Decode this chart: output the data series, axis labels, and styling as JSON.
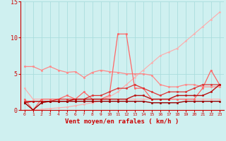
{
  "x": [
    0,
    1,
    2,
    3,
    4,
    5,
    6,
    7,
    8,
    9,
    10,
    11,
    12,
    13,
    14,
    15,
    16,
    17,
    18,
    19,
    20,
    21,
    22,
    23
  ],
  "background_color": "#cff0f0",
  "grid_color": "#aadddd",
  "xlabel": "Vent moyen/en rafales ( km/h )",
  "ylim": [
    0,
    15
  ],
  "xlim": [
    -0.5,
    23.5
  ],
  "yticks": [
    0,
    5,
    10,
    15
  ],
  "series": [
    {
      "color": "#ffaaaa",
      "linewidth": 0.8,
      "marker": "o",
      "markersize": 1.5,
      "values": [
        0,
        0.0,
        0.1,
        0.2,
        0.3,
        0.4,
        0.6,
        0.8,
        1.0,
        1.3,
        1.8,
        2.5,
        3.5,
        4.5,
        5.5,
        6.5,
        7.5,
        8.0,
        8.5,
        9.5,
        10.5,
        11.5,
        12.5,
        13.5
      ]
    },
    {
      "color": "#ffaaaa",
      "linewidth": 0.8,
      "marker": "o",
      "markersize": 1.5,
      "values": [
        3.0,
        1.5,
        1.5,
        1.5,
        1.5,
        1.5,
        1.5,
        1.5,
        1.5,
        1.5,
        1.5,
        1.5,
        1.5,
        1.5,
        1.5,
        1.5,
        1.5,
        1.5,
        1.5,
        1.5,
        1.5,
        1.5,
        1.5,
        1.5
      ]
    },
    {
      "color": "#ff8888",
      "linewidth": 0.9,
      "marker": "o",
      "markersize": 1.8,
      "values": [
        6.0,
        6.0,
        5.5,
        6.0,
        5.5,
        5.2,
        5.3,
        4.5,
        5.2,
        5.5,
        5.3,
        5.2,
        5.0,
        5.0,
        5.0,
        4.8,
        3.5,
        3.2,
        3.2,
        3.5,
        3.5,
        3.2,
        3.2,
        3.2
      ]
    },
    {
      "color": "#ff6666",
      "linewidth": 0.9,
      "marker": "o",
      "markersize": 1.8,
      "values": [
        1.5,
        0.0,
        1.5,
        1.5,
        1.5,
        2.0,
        1.5,
        2.5,
        1.5,
        1.5,
        2.0,
        10.5,
        10.5,
        3.0,
        3.0,
        1.5,
        1.5,
        1.5,
        1.5,
        1.5,
        1.5,
        3.0,
        5.5,
        3.5
      ]
    },
    {
      "color": "#dd3333",
      "linewidth": 0.9,
      "marker": "o",
      "markersize": 1.8,
      "values": [
        1.2,
        1.2,
        1.2,
        1.2,
        1.5,
        1.5,
        1.5,
        1.5,
        2.0,
        2.0,
        2.5,
        3.0,
        3.0,
        3.5,
        3.0,
        2.5,
        2.0,
        2.5,
        2.5,
        2.5,
        3.0,
        3.5,
        3.5,
        3.5
      ]
    },
    {
      "color": "#bb1111",
      "linewidth": 1.0,
      "marker": "o",
      "markersize": 1.8,
      "values": [
        1.0,
        1.2,
        1.2,
        1.2,
        1.2,
        1.2,
        1.5,
        1.5,
        1.5,
        1.5,
        1.5,
        1.5,
        1.5,
        2.0,
        2.0,
        1.5,
        1.5,
        1.5,
        2.0,
        2.0,
        2.0,
        2.0,
        2.5,
        3.5
      ]
    },
    {
      "color": "#990000",
      "linewidth": 1.0,
      "marker": "o",
      "markersize": 1.8,
      "values": [
        1.0,
        0.0,
        1.0,
        1.2,
        1.2,
        1.2,
        1.2,
        1.2,
        1.2,
        1.2,
        1.2,
        1.2,
        1.2,
        1.2,
        1.2,
        1.0,
        1.0,
        1.0,
        1.0,
        1.2,
        1.2,
        1.2,
        1.2,
        1.2
      ]
    }
  ]
}
